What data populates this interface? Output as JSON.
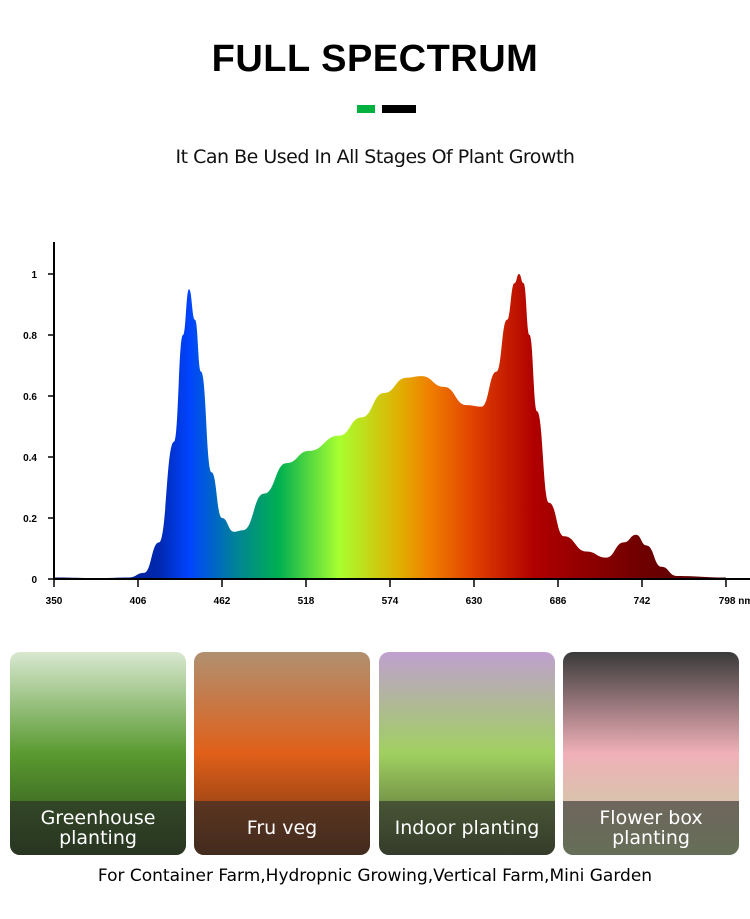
{
  "header": {
    "title": "FULL SPECTRUM",
    "subtitle": "It Can Be Used In All Stages Of Plant Growth",
    "accent_colors": [
      "#00b140",
      "#000000"
    ]
  },
  "chart_data": {
    "type": "area",
    "title": "",
    "xlabel": "nm",
    "ylabel": "",
    "xlim": [
      350,
      798
    ],
    "ylim": [
      0,
      1.1
    ],
    "x_ticks": [
      "350",
      "406",
      "462",
      "518",
      "574",
      "630",
      "686",
      "742",
      "798 nm"
    ],
    "x_tick_values": [
      350,
      406,
      462,
      518,
      574,
      630,
      686,
      742,
      798
    ],
    "y_ticks": [
      "0",
      "0.2",
      "0.4",
      "0.6",
      "0.8",
      "1"
    ],
    "y_tick_values": [
      0,
      0.2,
      0.4,
      0.6,
      0.8,
      1
    ],
    "grid": false,
    "series": [
      {
        "name": "spectrum",
        "x": [
          350,
          380,
          400,
          410,
          420,
          430,
          436,
          440,
          444,
          448,
          455,
          462,
          470,
          476,
          490,
          505,
          520,
          540,
          555,
          570,
          585,
          595,
          610,
          625,
          635,
          645,
          652,
          657,
          660,
          663,
          667,
          672,
          680,
          690,
          705,
          718,
          730,
          738,
          745,
          755,
          765,
          798
        ],
        "values": [
          0.005,
          0.003,
          0.005,
          0.02,
          0.12,
          0.45,
          0.8,
          0.95,
          0.85,
          0.68,
          0.35,
          0.2,
          0.155,
          0.16,
          0.28,
          0.38,
          0.42,
          0.47,
          0.53,
          0.61,
          0.66,
          0.665,
          0.63,
          0.57,
          0.565,
          0.68,
          0.85,
          0.97,
          1.0,
          0.97,
          0.8,
          0.55,
          0.25,
          0.14,
          0.09,
          0.07,
          0.12,
          0.145,
          0.11,
          0.04,
          0.01,
          0.005
        ]
      }
    ],
    "gradient_stops": [
      [
        350,
        "#001060"
      ],
      [
        420,
        "#0028b0"
      ],
      [
        440,
        "#0044ff"
      ],
      [
        470,
        "#00809a"
      ],
      [
        500,
        "#00b050"
      ],
      [
        540,
        "#a8ff30"
      ],
      [
        580,
        "#e0b000"
      ],
      [
        600,
        "#f08000"
      ],
      [
        630,
        "#e04000"
      ],
      [
        670,
        "#b00000"
      ],
      [
        740,
        "#700000"
      ],
      [
        798,
        "#500000"
      ]
    ]
  },
  "cards": [
    {
      "label": "Greenhouse planting",
      "colors": [
        "#d8e8d0",
        "#5a9a30",
        "#2a4a18"
      ]
    },
    {
      "label": "Fru veg",
      "colors": [
        "#b09070",
        "#e0601a",
        "#6a3010"
      ]
    },
    {
      "label": "Indoor planting",
      "colors": [
        "#c0a0d0",
        "#a0d060",
        "#4a5a30"
      ]
    },
    {
      "label": "Flower box planting",
      "colors": [
        "#3a3a3a",
        "#f0b0b8",
        "#c0d8a0"
      ]
    }
  ],
  "footer": "For Container Farm,Hydropnic Growing,Vertical Farm,Mini Garden"
}
